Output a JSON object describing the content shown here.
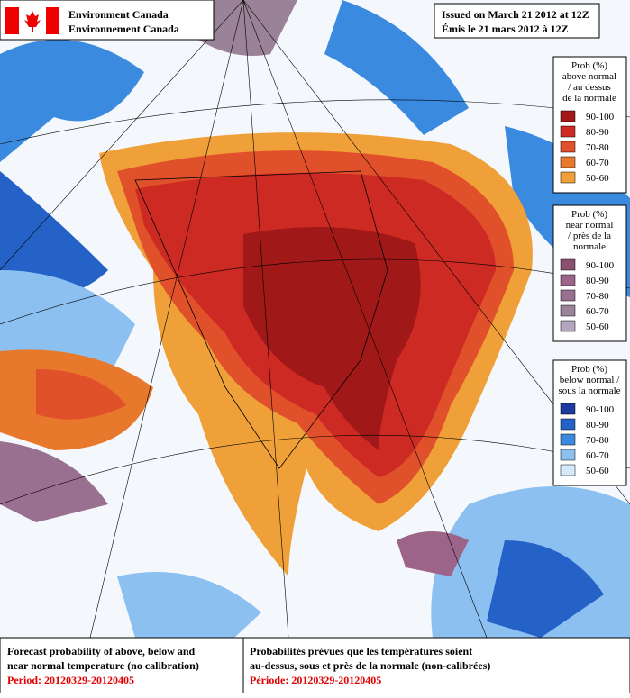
{
  "header": {
    "agency_en": "Environment Canada",
    "agency_fr": "Environnement Canada",
    "issued_en": "Issued on March 21 2012 at 12Z",
    "issued_fr": "Émis le 21 mars 2012 à 12Z"
  },
  "legends": [
    {
      "title_lines": [
        "Prob (%)",
        "above normal",
        "/ au dessus",
        "de la normale"
      ],
      "items": [
        {
          "label": "90-100",
          "color": "#a01818"
        },
        {
          "label": "80-90",
          "color": "#cc2a22"
        },
        {
          "label": "70-80",
          "color": "#e0502a"
        },
        {
          "label": "60-70",
          "color": "#e8782c"
        },
        {
          "label": "50-60",
          "color": "#f0a038"
        }
      ]
    },
    {
      "title_lines": [
        "Prob (%)",
        "near normal",
        "/ près de la",
        "normale"
      ],
      "items": [
        {
          "label": "90-100",
          "color": "#8a5070"
        },
        {
          "label": "80-90",
          "color": "#9c6488"
        },
        {
          "label": "70-80",
          "color": "#9a7090"
        },
        {
          "label": "60-70",
          "color": "#9a8298"
        },
        {
          "label": "50-60",
          "color": "#b4a4bc"
        }
      ]
    },
    {
      "title_lines": [
        "Prob (%)",
        "below normal /",
        "sous la normale"
      ],
      "items": [
        {
          "label": "90-100",
          "color": "#1e3ca0"
        },
        {
          "label": "80-90",
          "color": "#2462c8"
        },
        {
          "label": "70-80",
          "color": "#3a8ae0"
        },
        {
          "label": "60-70",
          "color": "#8cc0f0"
        },
        {
          "label": "50-60",
          "color": "#d4eafa"
        }
      ]
    }
  ],
  "footer": {
    "en_lines": [
      "Forecast probability of above, below and",
      "near normal temperature (no calibration)"
    ],
    "en_period": "Period: 20120329-20120405",
    "fr_lines": [
      "Probabilités prévues que les températures soient",
      "au-dessus, sous et près de la normale (non-calibrées)"
    ],
    "fr_period": "Période: 20120329-20120405"
  }
}
